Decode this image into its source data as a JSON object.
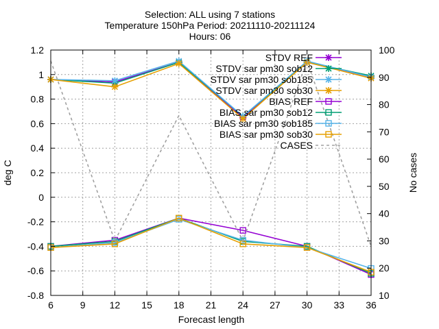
{
  "chart_data": {
    "type": "line",
    "title_lines": [
      "Selection: ALL using     7 stations",
      "Temperature 150hPa   Period: 20211110-20211124",
      "Hours: 06"
    ],
    "xlabel": "Forecast length",
    "ylabel": "deg C",
    "y2label": "No cases",
    "xlim": [
      6,
      36
    ],
    "ylim": [
      -0.8,
      1.2
    ],
    "y2lim": [
      10,
      100
    ],
    "xticks": [
      6,
      9,
      12,
      15,
      18,
      21,
      24,
      27,
      30,
      33,
      36
    ],
    "yticks": [
      -0.8,
      -0.6,
      -0.4,
      -0.2,
      0,
      0.2,
      0.4,
      0.6,
      0.8,
      1,
      1.2
    ],
    "y2ticks": [
      10,
      20,
      30,
      40,
      50,
      60,
      70,
      80,
      90,
      100
    ],
    "ytick_labels": [
      "-0.8",
      "-0.6",
      "-0.4",
      "-0.2",
      "0",
      "0.2",
      "0.4",
      "0.6",
      "0.8",
      "1",
      "1.2"
    ],
    "grid": true,
    "legend_position": "top-right",
    "x": [
      6,
      12,
      18,
      24,
      30,
      36
    ],
    "series": [
      {
        "name": "STDV REF",
        "color": "#9400d3",
        "marker": "star",
        "axis": "y1",
        "values": [
          0.96,
          0.94,
          1.1,
          0.65,
          1.1,
          0.98
        ]
      },
      {
        "name": "STDV sar_pm30_sob12",
        "color": "#009e73",
        "marker": "star",
        "axis": "y1",
        "values": [
          0.96,
          0.93,
          1.1,
          0.66,
          1.1,
          0.99
        ]
      },
      {
        "name": "STDV sar_pm30_sob185",
        "color": "#56b4e9",
        "marker": "star",
        "axis": "y1",
        "values": [
          0.96,
          0.95,
          1.11,
          0.66,
          1.11,
          0.98
        ]
      },
      {
        "name": "STDV sar_pm30_sob30",
        "color": "#e69f00",
        "marker": "star",
        "axis": "y1",
        "values": [
          0.96,
          0.9,
          1.09,
          0.64,
          1.1,
          0.97
        ]
      },
      {
        "name": "BIAS REF",
        "color": "#9400d3",
        "marker": "square",
        "axis": "y1",
        "values": [
          -0.4,
          -0.35,
          -0.17,
          -0.27,
          -0.4,
          -0.63
        ]
      },
      {
        "name": "BIAS sar_pm30_sob12",
        "color": "#009e73",
        "marker": "square",
        "axis": "y1",
        "values": [
          -0.4,
          -0.36,
          -0.17,
          -0.36,
          -0.4,
          -0.62
        ]
      },
      {
        "name": "BIAS sar_pm30_sob185",
        "color": "#56b4e9",
        "marker": "square",
        "axis": "y1",
        "values": [
          -0.41,
          -0.37,
          -0.18,
          -0.35,
          -0.41,
          -0.58
        ]
      },
      {
        "name": "BIAS sar_pm30_sob30",
        "color": "#e69f00",
        "marker": "square",
        "axis": "y1",
        "values": [
          -0.41,
          -0.38,
          -0.17,
          -0.38,
          -0.41,
          -0.61
        ]
      },
      {
        "name": "CASES",
        "color": "#a0a0a0",
        "marker": "none",
        "dashed": true,
        "axis": "y2",
        "values": [
          96,
          30,
          76,
          30,
          96,
          28
        ]
      }
    ]
  }
}
